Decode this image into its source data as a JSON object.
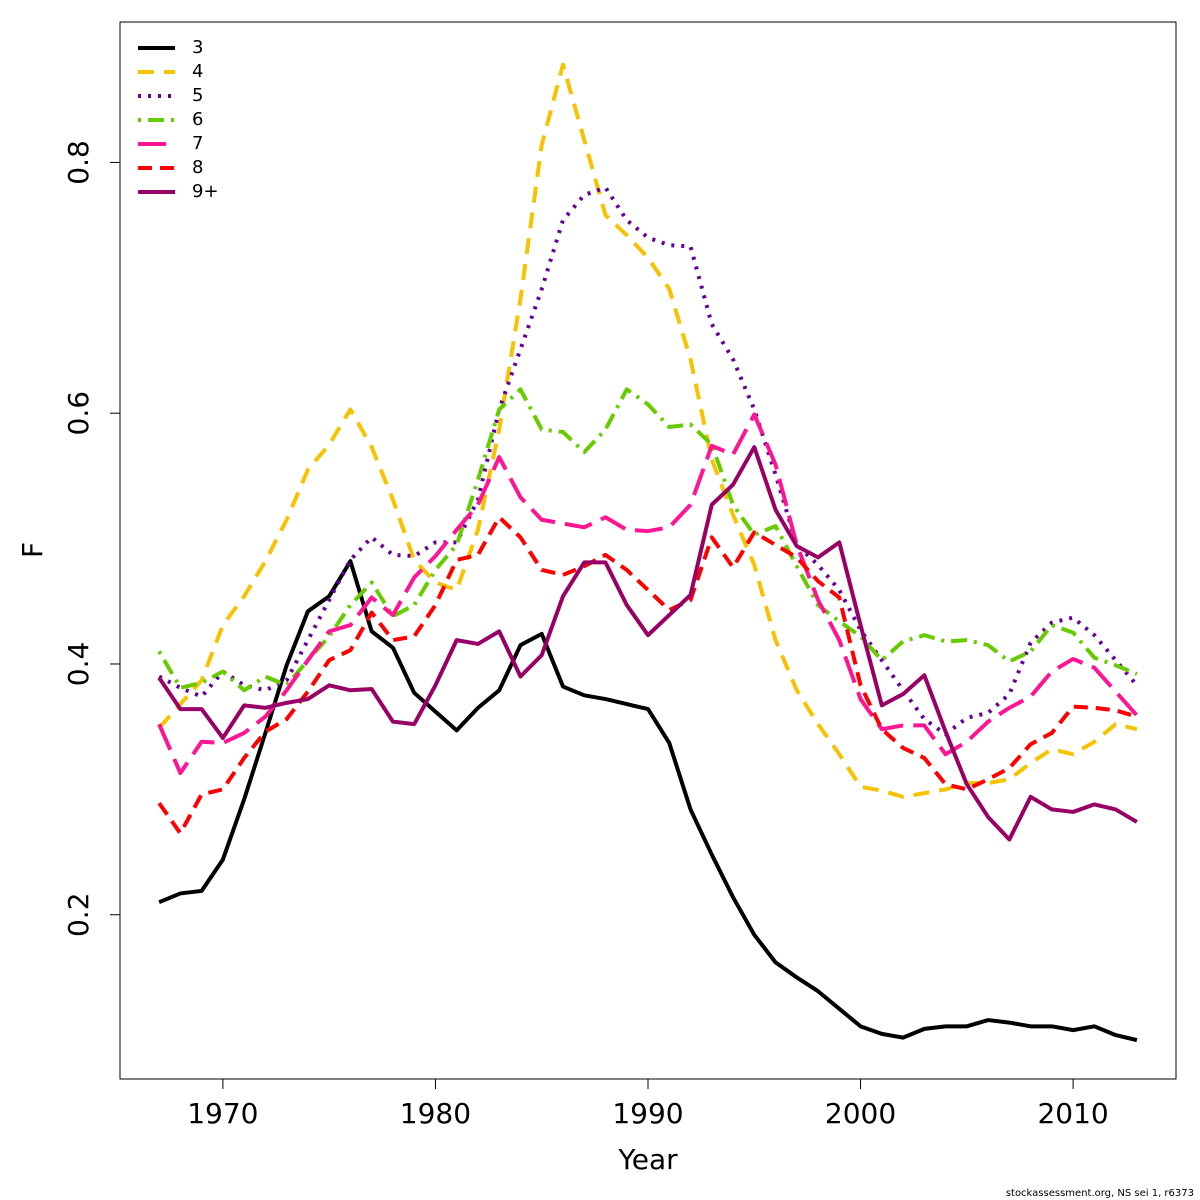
{
  "chart_data": {
    "type": "line",
    "xlabel": "Year",
    "ylabel": "F",
    "footnote": "stockassessment.org, NS sei 1, r6373",
    "legend": "top-left",
    "xlim": [
      1965.16,
      2014.84
    ],
    "xticks": [
      1970,
      1980,
      1990,
      2000,
      2010
    ],
    "ylim": [
      0.069,
      0.912
    ],
    "yticks": [
      0.2,
      0.4,
      0.6,
      0.8
    ],
    "x": [
      1967,
      1968,
      1969,
      1970,
      1971,
      1972,
      1973,
      1974,
      1975,
      1976,
      1977,
      1978,
      1979,
      1980,
      1981,
      1982,
      1983,
      1984,
      1985,
      1986,
      1987,
      1988,
      1989,
      1990,
      1991,
      1992,
      1993,
      1994,
      1995,
      1996,
      1997,
      1998,
      1999,
      2000,
      2001,
      2002,
      2003,
      2004,
      2005,
      2006,
      2007,
      2008,
      2009,
      2010,
      2011,
      2012,
      2013
    ],
    "series": [
      {
        "name": "3",
        "color": "#000000",
        "linestyle": "solid",
        "values": [
          0.21,
          0.217,
          0.219,
          0.244,
          0.292,
          0.345,
          0.399,
          0.442,
          0.454,
          0.482,
          0.426,
          0.413,
          0.377,
          0.362,
          0.347,
          0.365,
          0.379,
          0.415,
          0.424,
          0.382,
          0.375,
          0.372,
          0.368,
          0.364,
          0.337,
          0.284,
          0.248,
          0.214,
          0.184,
          0.162,
          0.15,
          0.139,
          0.125,
          0.111,
          0.105,
          0.102,
          0.109,
          0.111,
          0.111,
          0.116,
          0.114,
          0.111,
          0.111,
          0.108,
          0.111,
          0.104,
          0.1
        ]
      },
      {
        "name": "4",
        "color": "#f7c200",
        "linestyle": "dashed",
        "values": [
          0.349,
          0.368,
          0.387,
          0.431,
          0.454,
          0.482,
          0.515,
          0.555,
          0.575,
          0.603,
          0.573,
          0.531,
          0.483,
          0.465,
          0.459,
          0.507,
          0.587,
          0.691,
          0.814,
          0.878,
          0.818,
          0.758,
          0.742,
          0.724,
          0.699,
          0.643,
          0.563,
          0.519,
          0.479,
          0.419,
          0.379,
          0.352,
          0.328,
          0.302,
          0.299,
          0.294,
          0.297,
          0.3,
          0.305,
          0.305,
          0.308,
          0.321,
          0.332,
          0.328,
          0.338,
          0.352,
          0.348
        ]
      },
      {
        "name": "5",
        "color": "#660099",
        "linestyle": "dotted",
        "values": [
          0.39,
          0.381,
          0.374,
          0.394,
          0.383,
          0.379,
          0.387,
          0.419,
          0.451,
          0.483,
          0.501,
          0.487,
          0.486,
          0.497,
          0.497,
          0.531,
          0.603,
          0.651,
          0.699,
          0.754,
          0.774,
          0.78,
          0.754,
          0.74,
          0.734,
          0.733,
          0.671,
          0.643,
          0.603,
          0.551,
          0.495,
          0.479,
          0.459,
          0.427,
          0.403,
          0.379,
          0.356,
          0.344,
          0.357,
          0.361,
          0.376,
          0.417,
          0.433,
          0.437,
          0.423,
          0.403,
          0.383
        ]
      },
      {
        "name": "6",
        "color": "#66cc00",
        "linestyle": "dotdash",
        "values": [
          0.41,
          0.381,
          0.385,
          0.394,
          0.379,
          0.39,
          0.383,
          0.403,
          0.422,
          0.447,
          0.465,
          0.438,
          0.447,
          0.475,
          0.495,
          0.547,
          0.603,
          0.619,
          0.587,
          0.585,
          0.569,
          0.587,
          0.619,
          0.607,
          0.589,
          0.591,
          0.575,
          0.527,
          0.503,
          0.51,
          0.478,
          0.447,
          0.434,
          0.422,
          0.403,
          0.418,
          0.423,
          0.418,
          0.419,
          0.415,
          0.402,
          0.41,
          0.431,
          0.425,
          0.405,
          0.399,
          0.392
        ]
      },
      {
        "name": "7",
        "color": "#ff1493",
        "linestyle": "longdash",
        "values": [
          0.352,
          0.313,
          0.338,
          0.337,
          0.345,
          0.358,
          0.379,
          0.403,
          0.426,
          0.431,
          0.453,
          0.439,
          0.469,
          0.486,
          0.507,
          0.527,
          0.565,
          0.533,
          0.515,
          0.512,
          0.509,
          0.517,
          0.507,
          0.506,
          0.509,
          0.527,
          0.574,
          0.567,
          0.599,
          0.559,
          0.495,
          0.451,
          0.419,
          0.372,
          0.348,
          0.351,
          0.351,
          0.328,
          0.338,
          0.354,
          0.365,
          0.374,
          0.394,
          0.404,
          0.397,
          0.378,
          0.359
        ]
      },
      {
        "name": "8",
        "color": "#ff0000",
        "linestyle": "twodash",
        "values": [
          0.289,
          0.265,
          0.296,
          0.3,
          0.325,
          0.346,
          0.356,
          0.378,
          0.403,
          0.411,
          0.441,
          0.419,
          0.422,
          0.447,
          0.483,
          0.487,
          0.517,
          0.501,
          0.475,
          0.471,
          0.478,
          0.487,
          0.475,
          0.459,
          0.443,
          0.451,
          0.501,
          0.477,
          0.505,
          0.495,
          0.485,
          0.466,
          0.453,
          0.383,
          0.348,
          0.333,
          0.325,
          0.304,
          0.3,
          0.308,
          0.317,
          0.336,
          0.345,
          0.366,
          0.365,
          0.363,
          0.358
        ]
      },
      {
        "name": "9+",
        "color": "#990066",
        "linestyle": "solid",
        "values": [
          0.389,
          0.364,
          0.364,
          0.341,
          0.367,
          0.365,
          0.369,
          0.372,
          0.383,
          0.379,
          0.38,
          0.354,
          0.352,
          0.383,
          0.419,
          0.416,
          0.426,
          0.39,
          0.407,
          0.454,
          0.481,
          0.481,
          0.447,
          0.423,
          0.439,
          0.455,
          0.527,
          0.543,
          0.573,
          0.523,
          0.494,
          0.485,
          0.497,
          0.431,
          0.367,
          0.376,
          0.391,
          0.346,
          0.304,
          0.278,
          0.26,
          0.294,
          0.284,
          0.282,
          0.288,
          0.284,
          0.274
        ]
      }
    ]
  }
}
